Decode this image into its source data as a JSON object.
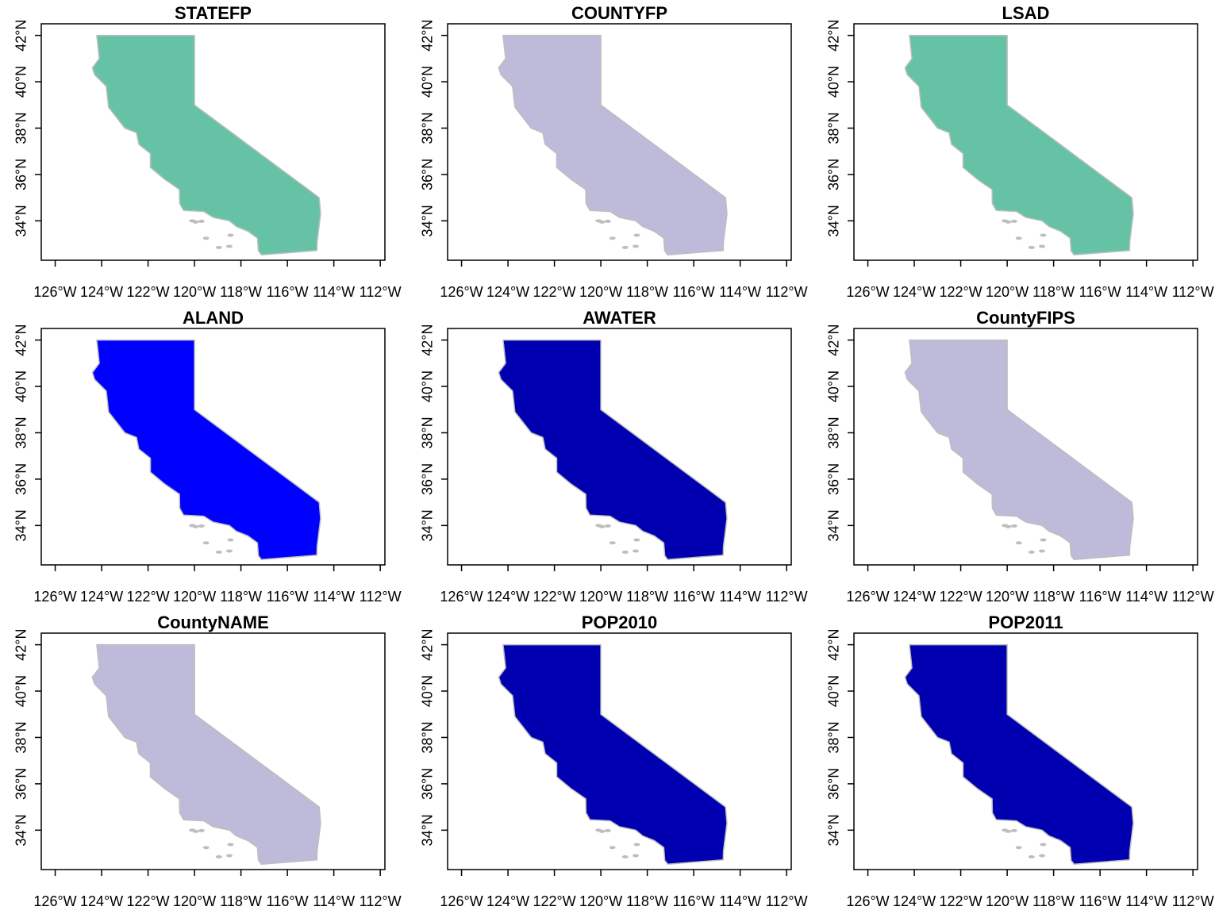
{
  "lon_ticks": [
    "126°W",
    "124°W",
    "122°W",
    "120°W",
    "118°W",
    "116°W",
    "114°W",
    "112°W"
  ],
  "lat_ticks": [
    "34°N",
    "36°N",
    "38°N",
    "40°N",
    "42°N"
  ],
  "panels": [
    {
      "title": "STATEFP",
      "fill": "#66c2a5"
    },
    {
      "title": "COUNTYFP",
      "fill": "#bebada"
    },
    {
      "title": "LSAD",
      "fill": "#66c2a5"
    },
    {
      "title": "ALAND",
      "fill": "#0000ff"
    },
    {
      "title": "AWATER",
      "fill": "#0000b0"
    },
    {
      "title": "CountyFIPS",
      "fill": "#bebada"
    },
    {
      "title": "CountyNAME",
      "fill": "#bebada"
    },
    {
      "title": "POP2010",
      "fill": "#0000b0"
    },
    {
      "title": "POP2011",
      "fill": "#0000b0"
    }
  ],
  "colors": {
    "frame": "#000000",
    "county_border": "#bebebe"
  }
}
